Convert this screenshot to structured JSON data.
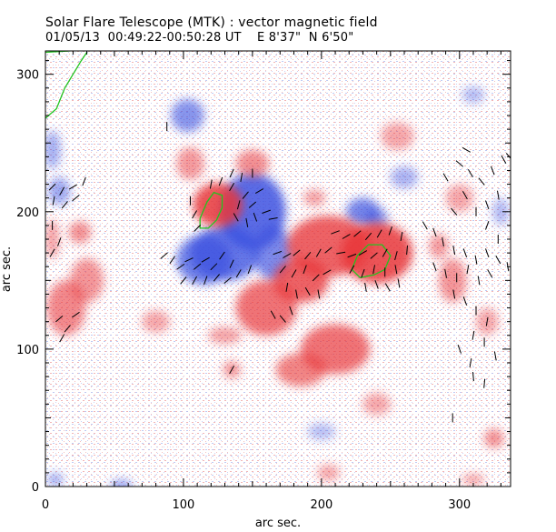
{
  "header": {
    "title": "Solar Flare Telescope (MTK) : vector magnetic field",
    "subtitle": "01/05/13  00:49:22-00:50:28 UT    E 8'37\"  N 6'50\""
  },
  "chart_data": {
    "type": "heatmap",
    "title": "Solar Flare Telescope (MTK) : vector magnetic field",
    "subtitle": "01/05/13  00:49:22-00:50:28 UT    E 8'37\"  N 6'50\"",
    "xlabel": "arc sec.",
    "ylabel": "arc sec.",
    "xlim": [
      0,
      337
    ],
    "ylim": [
      0,
      317
    ],
    "x_ticks": [
      0,
      100,
      200,
      300
    ],
    "y_ticks": [
      0,
      100,
      200,
      300
    ],
    "grid": false,
    "colors": {
      "positive_polarity": "#e8363a",
      "negative_polarity": "#3c52e0",
      "contour": "#22c41f",
      "vectors": "#000000"
    },
    "positive_regions": [
      {
        "x": 125,
        "y": 205,
        "rx": 18,
        "ry": 16,
        "s": 1.0
      },
      {
        "x": 240,
        "y": 170,
        "rx": 26,
        "ry": 22,
        "s": 1.0
      },
      {
        "x": 205,
        "y": 175,
        "rx": 30,
        "ry": 22,
        "s": 0.9
      },
      {
        "x": 185,
        "y": 150,
        "rx": 20,
        "ry": 16,
        "s": 0.9
      },
      {
        "x": 160,
        "y": 130,
        "rx": 22,
        "ry": 20,
        "s": 0.75
      },
      {
        "x": 210,
        "y": 100,
        "rx": 25,
        "ry": 18,
        "s": 0.75
      },
      {
        "x": 185,
        "y": 85,
        "rx": 18,
        "ry": 12,
        "s": 0.6
      },
      {
        "x": 150,
        "y": 235,
        "rx": 12,
        "ry": 10,
        "s": 0.5
      },
      {
        "x": 105,
        "y": 235,
        "rx": 10,
        "ry": 12,
        "s": 0.4
      },
      {
        "x": 15,
        "y": 130,
        "rx": 14,
        "ry": 20,
        "s": 0.55
      },
      {
        "x": 30,
        "y": 150,
        "rx": 12,
        "ry": 16,
        "s": 0.45
      },
      {
        "x": 25,
        "y": 185,
        "rx": 8,
        "ry": 8,
        "s": 0.5
      },
      {
        "x": 5,
        "y": 180,
        "rx": 5,
        "ry": 14,
        "s": 0.35
      },
      {
        "x": 295,
        "y": 150,
        "rx": 10,
        "ry": 16,
        "s": 0.45
      },
      {
        "x": 285,
        "y": 175,
        "rx": 7,
        "ry": 9,
        "s": 0.4
      },
      {
        "x": 130,
        "y": 110,
        "rx": 12,
        "ry": 6,
        "s": 0.35
      },
      {
        "x": 135,
        "y": 85,
        "rx": 6,
        "ry": 6,
        "s": 0.5
      },
      {
        "x": 240,
        "y": 60,
        "rx": 10,
        "ry": 8,
        "s": 0.3
      },
      {
        "x": 300,
        "y": 210,
        "rx": 10,
        "ry": 10,
        "s": 0.3
      },
      {
        "x": 255,
        "y": 255,
        "rx": 12,
        "ry": 10,
        "s": 0.3
      },
      {
        "x": 205,
        "y": 10,
        "rx": 8,
        "ry": 6,
        "s": 0.3
      },
      {
        "x": 325,
        "y": 35,
        "rx": 7,
        "ry": 7,
        "s": 0.5
      },
      {
        "x": 310,
        "y": 5,
        "rx": 8,
        "ry": 4,
        "s": 0.35
      },
      {
        "x": 320,
        "y": 120,
        "rx": 8,
        "ry": 10,
        "s": 0.3
      },
      {
        "x": 195,
        "y": 210,
        "rx": 8,
        "ry": 6,
        "s": 0.35
      },
      {
        "x": 80,
        "y": 120,
        "rx": 10,
        "ry": 8,
        "s": 0.3
      }
    ],
    "negative_regions": [
      {
        "x": 150,
        "y": 200,
        "rx": 24,
        "ry": 28,
        "s": 1.0
      },
      {
        "x": 130,
        "y": 170,
        "rx": 25,
        "ry": 20,
        "s": 0.9
      },
      {
        "x": 115,
        "y": 165,
        "rx": 20,
        "ry": 18,
        "s": 0.8
      },
      {
        "x": 165,
        "y": 170,
        "rx": 14,
        "ry": 20,
        "s": 0.7
      },
      {
        "x": 230,
        "y": 200,
        "rx": 12,
        "ry": 10,
        "s": 0.75
      },
      {
        "x": 240,
        "y": 195,
        "rx": 8,
        "ry": 8,
        "s": 0.55
      },
      {
        "x": 103,
        "y": 270,
        "rx": 12,
        "ry": 12,
        "s": 0.6
      },
      {
        "x": 5,
        "y": 245,
        "rx": 6,
        "ry": 14,
        "s": 0.35
      },
      {
        "x": 10,
        "y": 215,
        "rx": 8,
        "ry": 10,
        "s": 0.4
      },
      {
        "x": 55,
        "y": 0,
        "rx": 8,
        "ry": 5,
        "s": 0.45
      },
      {
        "x": 7,
        "y": 5,
        "rx": 6,
        "ry": 5,
        "s": 0.35
      },
      {
        "x": 310,
        "y": 285,
        "rx": 8,
        "ry": 6,
        "s": 0.25
      },
      {
        "x": 260,
        "y": 225,
        "rx": 10,
        "ry": 8,
        "s": 0.3
      },
      {
        "x": 200,
        "y": 40,
        "rx": 10,
        "ry": 6,
        "s": 0.2
      },
      {
        "x": 330,
        "y": 200,
        "rx": 6,
        "ry": 10,
        "s": 0.25
      }
    ],
    "contours": [
      [
        [
          112,
          195
        ],
        [
          117,
          207
        ],
        [
          122,
          214
        ],
        [
          128,
          212
        ],
        [
          128,
          203
        ],
        [
          124,
          194
        ],
        [
          118,
          188
        ],
        [
          112,
          188
        ],
        [
          112,
          195
        ]
      ],
      [
        [
          222,
          158
        ],
        [
          226,
          168
        ],
        [
          234,
          176
        ],
        [
          244,
          176
        ],
        [
          250,
          168
        ],
        [
          246,
          158
        ],
        [
          238,
          154
        ],
        [
          228,
          152
        ],
        [
          222,
          158
        ]
      ],
      [
        [
          0,
          268
        ],
        [
          8,
          275
        ],
        [
          14,
          290
        ],
        [
          20,
          300
        ],
        [
          26,
          310
        ],
        [
          30,
          316
        ]
      ],
      [
        [
          0,
          316
        ],
        [
          18,
          317
        ]
      ]
    ],
    "vectors": [
      [
        5,
        218,
        45
      ],
      [
        12,
        215,
        60
      ],
      [
        20,
        218,
        30
      ],
      [
        28,
        222,
        70
      ],
      [
        6,
        208,
        80
      ],
      [
        14,
        205,
        50
      ],
      [
        22,
        210,
        40
      ],
      [
        5,
        190,
        90
      ],
      [
        10,
        178,
        70
      ],
      [
        5,
        170,
        60
      ],
      [
        105,
        208,
        90
      ],
      [
        108,
        198,
        60
      ],
      [
        110,
        188,
        45
      ],
      [
        120,
        220,
        80
      ],
      [
        127,
        222,
        70
      ],
      [
        135,
        218,
        60
      ],
      [
        140,
        205,
        75
      ],
      [
        145,
        212,
        50
      ],
      [
        150,
        205,
        40
      ],
      [
        155,
        215,
        30
      ],
      [
        160,
        200,
        20
      ],
      [
        165,
        195,
        10
      ],
      [
        135,
        228,
        65
      ],
      [
        142,
        225,
        80
      ],
      [
        150,
        228,
        90
      ],
      [
        138,
        196,
        120
      ],
      [
        146,
        192,
        100
      ],
      [
        152,
        196,
        110
      ],
      [
        86,
        168,
        40
      ],
      [
        92,
        165,
        55
      ],
      [
        98,
        160,
        35
      ],
      [
        104,
        165,
        25
      ],
      [
        110,
        160,
        40
      ],
      [
        116,
        165,
        30
      ],
      [
        122,
        160,
        45
      ],
      [
        128,
        168,
        55
      ],
      [
        135,
        162,
        65
      ],
      [
        100,
        150,
        50
      ],
      [
        108,
        150,
        60
      ],
      [
        116,
        150,
        70
      ],
      [
        124,
        152,
        50
      ],
      [
        132,
        150,
        40
      ],
      [
        140,
        155,
        60
      ],
      [
        148,
        158,
        70
      ],
      [
        168,
        170,
        20
      ],
      [
        175,
        168,
        30
      ],
      [
        182,
        170,
        40
      ],
      [
        190,
        168,
        50
      ],
      [
        198,
        170,
        60
      ],
      [
        205,
        172,
        40
      ],
      [
        172,
        158,
        50
      ],
      [
        180,
        155,
        60
      ],
      [
        188,
        158,
        70
      ],
      [
        196,
        152,
        45
      ],
      [
        204,
        156,
        30
      ],
      [
        175,
        145,
        80
      ],
      [
        182,
        140,
        100
      ],
      [
        190,
        142,
        120
      ],
      [
        198,
        140,
        100
      ],
      [
        210,
        185,
        20
      ],
      [
        218,
        182,
        30
      ],
      [
        226,
        184,
        40
      ],
      [
        234,
        182,
        50
      ],
      [
        242,
        184,
        60
      ],
      [
        250,
        186,
        70
      ],
      [
        258,
        182,
        80
      ],
      [
        214,
        170,
        10
      ],
      [
        222,
        168,
        20
      ],
      [
        230,
        170,
        30
      ],
      [
        238,
        168,
        40
      ],
      [
        246,
        170,
        60
      ],
      [
        254,
        168,
        75
      ],
      [
        262,
        172,
        85
      ],
      [
        222,
        158,
        60
      ],
      [
        230,
        155,
        70
      ],
      [
        238,
        158,
        80
      ],
      [
        246,
        156,
        90
      ],
      [
        254,
        158,
        100
      ],
      [
        232,
        145,
        100
      ],
      [
        240,
        147,
        110
      ],
      [
        248,
        145,
        120
      ],
      [
        256,
        148,
        100
      ],
      [
        165,
        125,
        120
      ],
      [
        172,
        122,
        130
      ],
      [
        178,
        128,
        110
      ],
      [
        10,
        122,
        40
      ],
      [
        16,
        115,
        50
      ],
      [
        22,
        125,
        35
      ],
      [
        12,
        108,
        60
      ],
      [
        88,
        262,
        90
      ],
      [
        135,
        85,
        60
      ],
      [
        275,
        190,
        120
      ],
      [
        282,
        185,
        110
      ],
      [
        288,
        178,
        100
      ],
      [
        296,
        172,
        100
      ],
      [
        304,
        170,
        110
      ],
      [
        312,
        165,
        100
      ],
      [
        320,
        170,
        110
      ],
      [
        328,
        165,
        120
      ],
      [
        282,
        160,
        110
      ],
      [
        290,
        155,
        100
      ],
      [
        298,
        152,
        90
      ],
      [
        306,
        158,
        80
      ],
      [
        314,
        150,
        100
      ],
      [
        322,
        155,
        120
      ],
      [
        296,
        140,
        100
      ],
      [
        304,
        135,
        110
      ],
      [
        312,
        128,
        90
      ],
      [
        320,
        120,
        80
      ],
      [
        300,
        235,
        140
      ],
      [
        308,
        228,
        120
      ],
      [
        316,
        222,
        130
      ],
      [
        324,
        230,
        110
      ],
      [
        332,
        238,
        120
      ],
      [
        328,
        212,
        100
      ],
      [
        320,
        205,
        110
      ],
      [
        312,
        200,
        90
      ],
      [
        304,
        212,
        120
      ],
      [
        296,
        200,
        130
      ],
      [
        310,
        110,
        80
      ],
      [
        318,
        105,
        90
      ],
      [
        326,
        95,
        100
      ],
      [
        300,
        100,
        110
      ],
      [
        308,
        90,
        80
      ],
      [
        318,
        75,
        85
      ],
      [
        310,
        80,
        95
      ],
      [
        295,
        50,
        90
      ],
      [
        320,
        190,
        70
      ],
      [
        328,
        180,
        90
      ],
      [
        335,
        160,
        100
      ],
      [
        336,
        240,
        130
      ],
      [
        305,
        245,
        150
      ],
      [
        290,
        225,
        120
      ]
    ]
  }
}
